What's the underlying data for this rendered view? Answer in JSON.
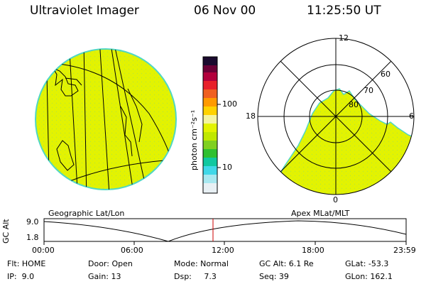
{
  "header": {
    "title": "Ultraviolet Imager",
    "date": "06 Nov 00",
    "time": "11:25:50 UT"
  },
  "colorbar": {
    "unit_label": "photon cm⁻²s⁻¹",
    "ticks": [
      "100",
      "10"
    ]
  },
  "panels": {
    "left_label": "Geographic Lat/Lon",
    "right_label": "Apex MLat/MLT"
  },
  "polar": {
    "mlt_labels": {
      "top": "12",
      "left": "18",
      "right": "6",
      "bottom": "0"
    },
    "lat_labels": [
      "60",
      "70",
      "80"
    ]
  },
  "altitude_plot": {
    "ylabel": "GC Alt",
    "y_top": "9.0",
    "y_bottom": "1.8",
    "x_ticks": [
      "00:00",
      "06:00",
      "12:00",
      "18:00",
      "23:59"
    ]
  },
  "footer": {
    "row1": {
      "flt": "Flt: HOME",
      "door": "Door: Open",
      "mode": "Mode: Normal",
      "gcalt": "GC Alt: 6.1 Re",
      "glat": "GLat: -53.3"
    },
    "row2": {
      "ip": "IP:  9.0",
      "gain": "Gain: 13",
      "dsp": "Dsp:     7.3",
      "seq": "Seq: 39",
      "glon": "GLon: 162.1"
    }
  },
  "colors": {
    "aurora_fill": "#e3f300",
    "limb": "#4fd7c4",
    "current_time_marker": "#cc0000"
  }
}
